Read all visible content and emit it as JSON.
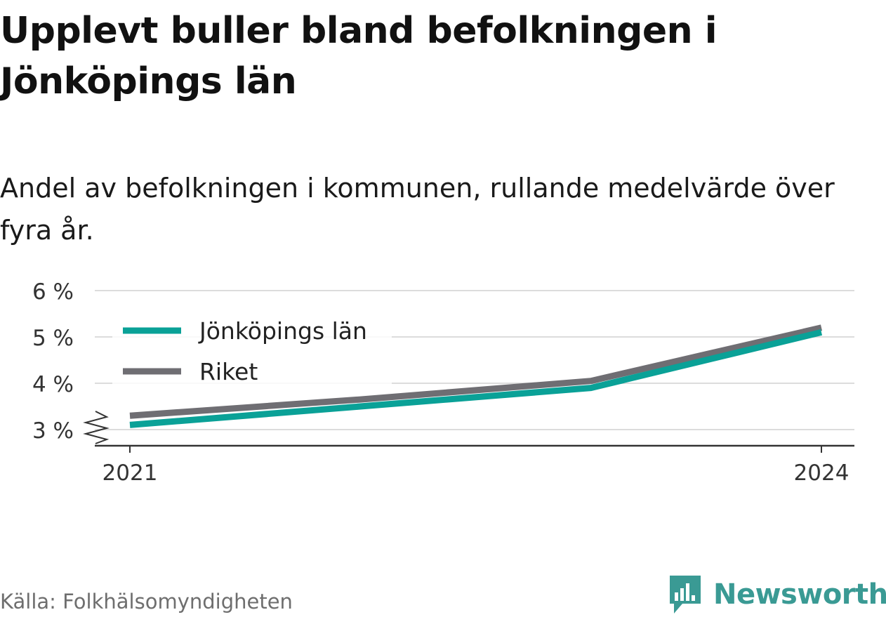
{
  "title": "Upplevt buller bland befolkningen i Jönköpings län",
  "subtitle": "Andel av befolkningen i kommunen, rullande medelvärde över fyra år.",
  "source": "Källa: Folkhälsomyndigheten",
  "brand": {
    "name": "Newsworthy",
    "icon": "bar-chart-speech-bubble-icon",
    "color": "#3a9a94"
  },
  "chart_data": {
    "type": "line",
    "x": [
      2021,
      2022,
      2023,
      2024
    ],
    "x_tick_labels": [
      "2021",
      "2024"
    ],
    "y_ticks": [
      3,
      4,
      5,
      6
    ],
    "y_tick_labels": [
      "3 %",
      "4 %",
      "5 %",
      "6 %"
    ],
    "ylim": [
      3,
      6
    ],
    "y_axis_break": true,
    "grid": true,
    "legend_position": "top-left",
    "series": [
      {
        "name": "Jönköpings län",
        "color": "#0aa197",
        "values": [
          3.1,
          3.5,
          3.9,
          5.1
        ]
      },
      {
        "name": "Riket",
        "color": "#6f6e73",
        "values": [
          3.3,
          3.65,
          4.05,
          5.2
        ]
      }
    ]
  }
}
